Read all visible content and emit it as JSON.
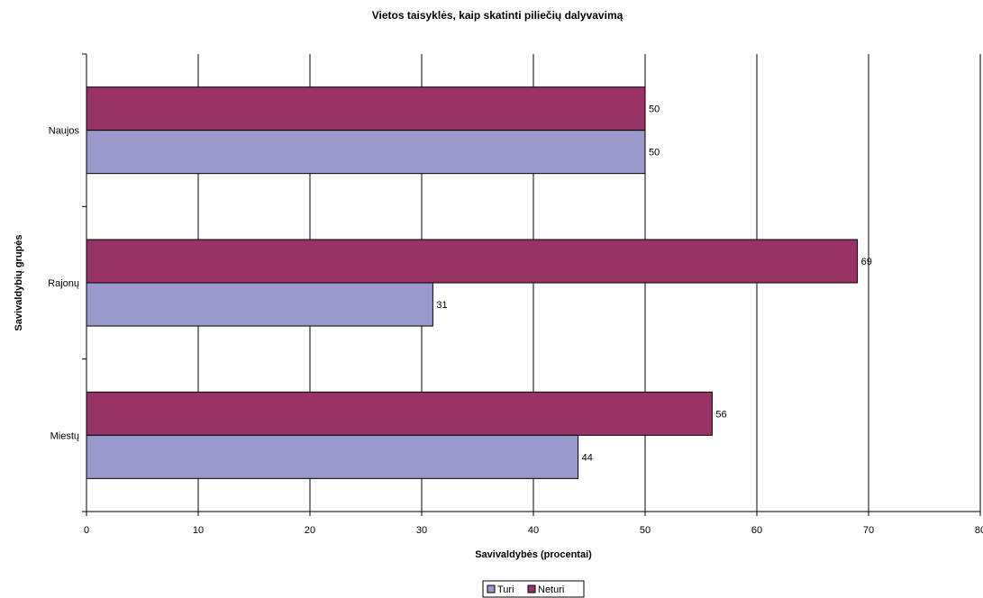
{
  "chart_data": {
    "type": "bar",
    "orientation": "horizontal",
    "title": "Vietos taisyklės, kaip skatinti piliečių dalyvavimą",
    "xlabel": "Savivaldybės (procentai)",
    "ylabel": "Savivaldybių grupės",
    "categories": [
      "Naujos",
      "Rajonų",
      "Miestų"
    ],
    "series": [
      {
        "name": "Turi",
        "values": [
          50,
          31,
          44
        ],
        "color": "#9999cc"
      },
      {
        "name": "Neturi",
        "values": [
          50,
          69,
          56
        ],
        "color": "#993366"
      }
    ],
    "xlim": [
      0,
      80
    ],
    "xticks": [
      "0",
      "10",
      "20",
      "30",
      "40",
      "50",
      "60",
      "70",
      "80"
    ],
    "grid": true,
    "data_labels": true,
    "legend": "bottom-center"
  }
}
